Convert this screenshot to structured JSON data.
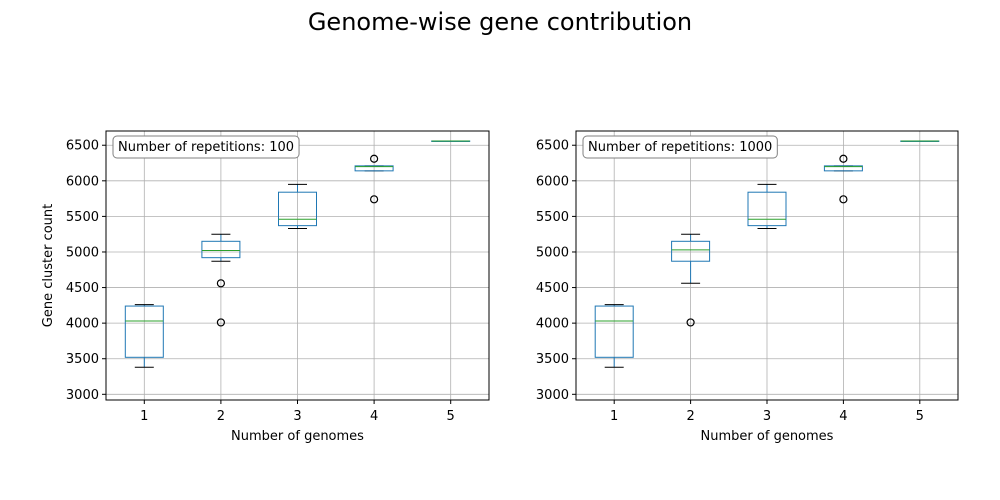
{
  "figure": {
    "title": "Genome-wise gene contribution"
  },
  "chart_data": [
    {
      "type": "box",
      "title": "",
      "annotation": "Number of repetitions: 100",
      "xlabel": "Number of genomes",
      "ylabel": "Gene cluster count",
      "categories": [
        "1",
        "2",
        "3",
        "4",
        "5"
      ],
      "ylim": [
        2920,
        6700
      ],
      "yticks": [
        3000,
        3500,
        4000,
        4500,
        5000,
        5500,
        6000,
        6500
      ],
      "grid": true,
      "boxes": [
        {
          "whislo": 3380,
          "q1": 3520,
          "med": 4030,
          "q3": 4240,
          "whishi": 4260,
          "fliers": []
        },
        {
          "whislo": 4870,
          "q1": 4920,
          "med": 5020,
          "q3": 5150,
          "whishi": 5250,
          "fliers": [
            4560,
            4010
          ]
        },
        {
          "whislo": 5330,
          "q1": 5370,
          "med": 5460,
          "q3": 5840,
          "whishi": 5950,
          "fliers": []
        },
        {
          "whislo": 6140,
          "q1": 6140,
          "med": 6200,
          "q3": 6210,
          "whishi": 6210,
          "fliers": [
            6310,
            5740
          ]
        },
        {
          "whislo": 6560,
          "q1": 6560,
          "med": 6560,
          "q3": 6560,
          "whishi": 6560,
          "fliers": []
        }
      ]
    },
    {
      "type": "box",
      "title": "",
      "annotation": "Number of repetitions: 1000",
      "xlabel": "Number of genomes",
      "ylabel": "",
      "categories": [
        "1",
        "2",
        "3",
        "4",
        "5"
      ],
      "ylim": [
        2920,
        6700
      ],
      "yticks": [
        3000,
        3500,
        4000,
        4500,
        5000,
        5500,
        6000,
        6500
      ],
      "grid": true,
      "boxes": [
        {
          "whislo": 3380,
          "q1": 3520,
          "med": 4030,
          "q3": 4240,
          "whishi": 4260,
          "fliers": []
        },
        {
          "whislo": 4560,
          "q1": 4870,
          "med": 5030,
          "q3": 5150,
          "whishi": 5250,
          "fliers": [
            4010
          ]
        },
        {
          "whislo": 5330,
          "q1": 5370,
          "med": 5460,
          "q3": 5840,
          "whishi": 5950,
          "fliers": []
        },
        {
          "whislo": 6140,
          "q1": 6140,
          "med": 6200,
          "q3": 6210,
          "whishi": 6210,
          "fliers": [
            6310,
            5740
          ]
        },
        {
          "whislo": 6560,
          "q1": 6560,
          "med": 6560,
          "q3": 6560,
          "whishi": 6560,
          "fliers": []
        }
      ]
    }
  ],
  "colors": {
    "box": "#1f77b4",
    "median": "#2ca02c",
    "grid": "#b0b0b0",
    "whisker": "#000000"
  }
}
